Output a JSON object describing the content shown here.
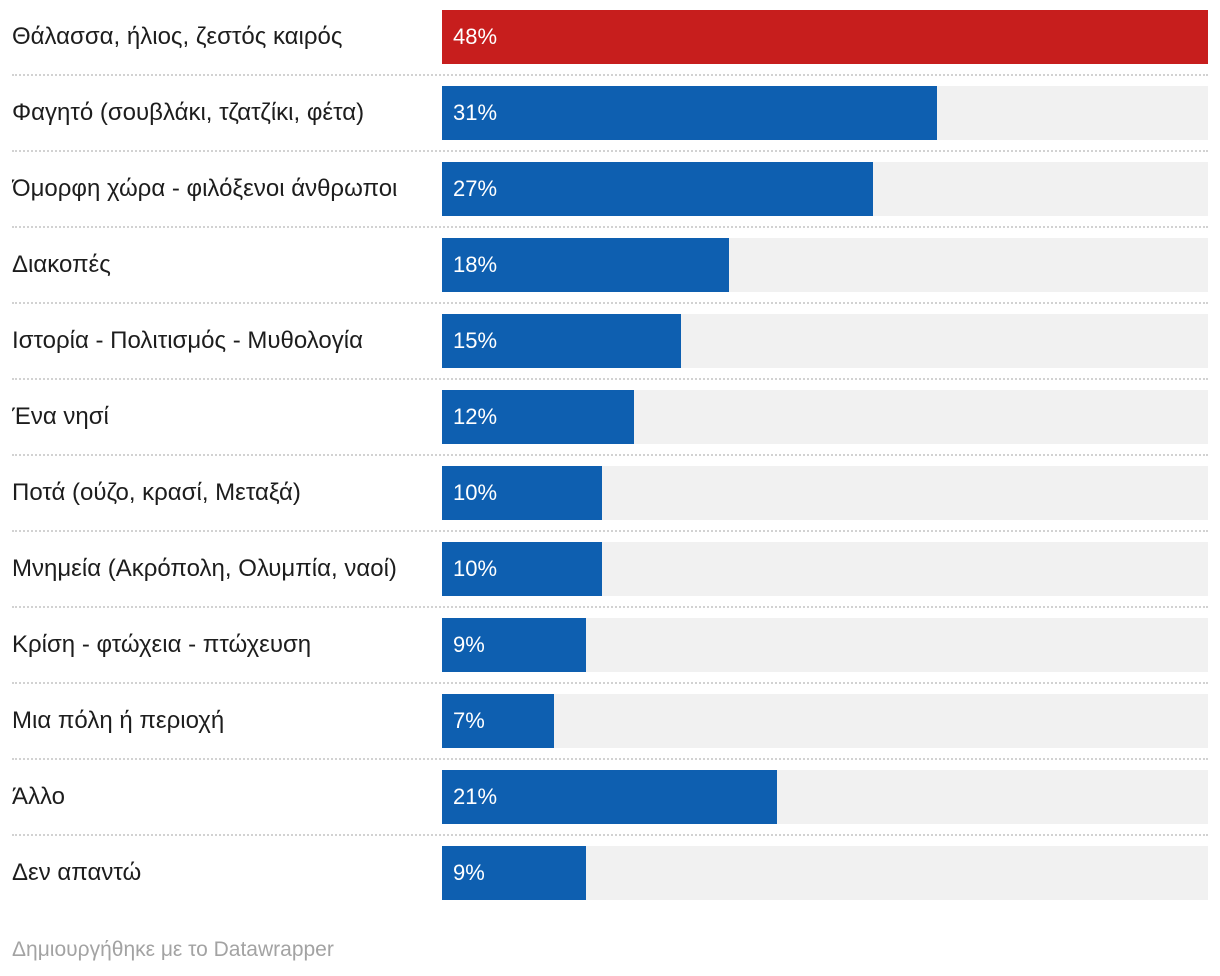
{
  "chart_data": {
    "type": "bar",
    "orientation": "horizontal",
    "title": "",
    "xlabel": "",
    "ylabel": "",
    "xlim": [
      0,
      48
    ],
    "grid": false,
    "legend": "none",
    "value_suffix": "%",
    "categories": [
      "Θάλασσα, ήλιος, ζεστός καιρός",
      "Φαγητό (σουβλάκι, τζατζίκι, φέτα)",
      "Όμορφη χώρα - φιλόξενοι άνθρωποι",
      "Διακοπές",
      "Ιστορία - Πολιτισμός - Μυθολογία",
      "Ένα νησί",
      "Ποτά (ούζο, κρασί, Μεταξά)",
      "Μνημεία (Ακρόπολη, Ολυμπία, ναοί)",
      "Κρίση - φτώχεια - πτώχευση",
      "Μια πόλη ή περιοχή",
      "Άλλο",
      "Δεν απαντώ"
    ],
    "values": [
      48,
      31,
      27,
      18,
      15,
      12,
      10,
      10,
      9,
      7,
      21,
      9
    ],
    "value_labels": [
      "48%",
      "31%",
      "27%",
      "18%",
      "15%",
      "12%",
      "10%",
      "10%",
      "9%",
      "7%",
      "21%",
      "9%"
    ],
    "highlight_index": 0,
    "colors": {
      "highlight": "#c71e1d",
      "default": "#0e5fb0",
      "track": "#f1f1f1"
    }
  },
  "footer": {
    "credit": "Δημιουργήθηκε με το Datawrapper"
  }
}
